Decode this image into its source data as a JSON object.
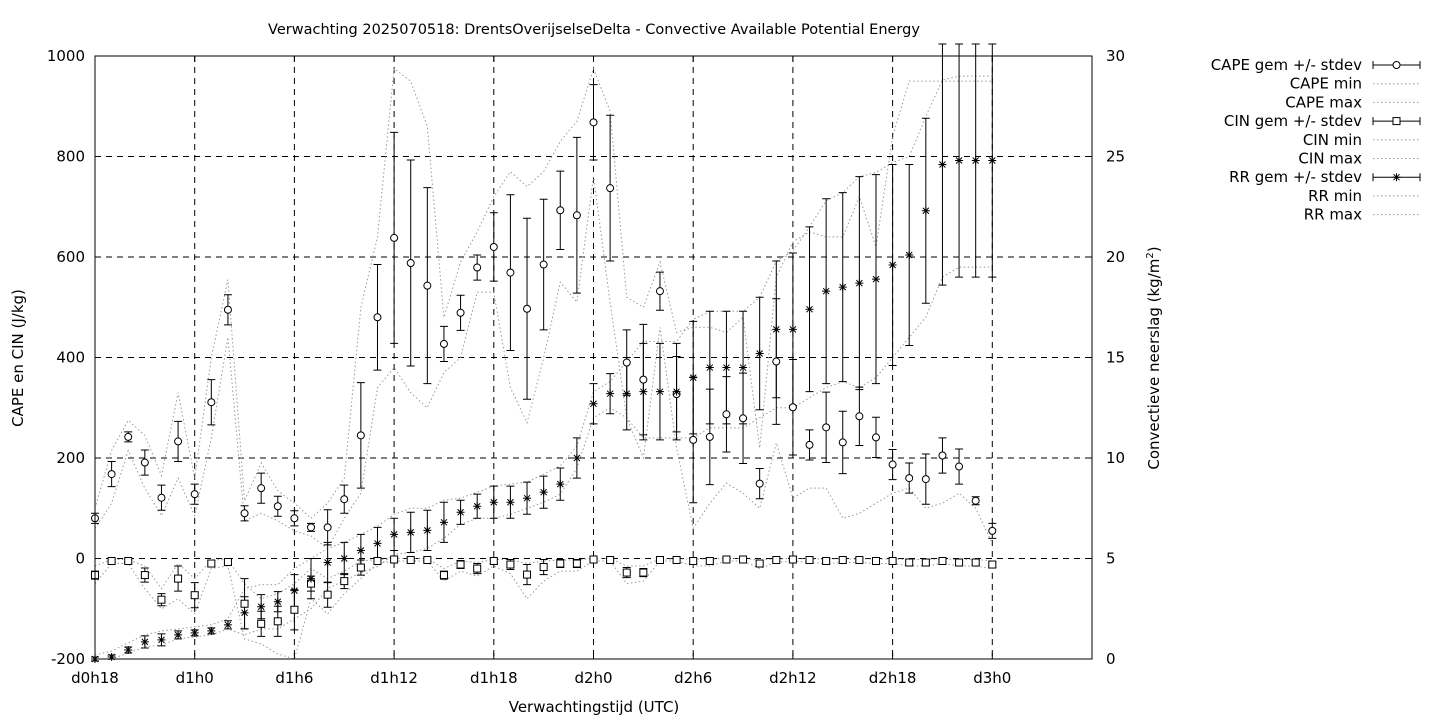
{
  "chart_data": {
    "type": "scatter",
    "title": "Verwachting 2025070518: DrentsOverijselseDelta - Convective Available Potential Energy",
    "xlabel": "Verwachtingstijd (UTC)",
    "ylabel": "CAPE en CIN (J/kg)",
    "y2label": "Convectieve neerslag (kg/m",
    "y2label_sup": "2",
    "y2label_end": ")",
    "xlim": [
      18,
      78
    ],
    "ylim": [
      -200,
      1000
    ],
    "y2lim": [
      0,
      30
    ],
    "grid": true,
    "legend_position": "right-outside",
    "x_ticks": [
      {
        "x": 18,
        "label": "d0h18"
      },
      {
        "x": 24,
        "label": "d1h0"
      },
      {
        "x": 30,
        "label": "d1h6"
      },
      {
        "x": 36,
        "label": "d1h12"
      },
      {
        "x": 42,
        "label": "d1h18"
      },
      {
        "x": 48,
        "label": "d2h0"
      },
      {
        "x": 54,
        "label": "d2h6"
      },
      {
        "x": 60,
        "label": "d2h12"
      },
      {
        "x": 66,
        "label": "d2h18"
      },
      {
        "x": 72,
        "label": "d3h0"
      }
    ],
    "y_ticks": [
      -200,
      0,
      200,
      400,
      600,
      800,
      1000
    ],
    "y2_ticks": [
      0,
      5,
      10,
      15,
      20,
      25,
      30
    ],
    "x": [
      18,
      19,
      20,
      21,
      22,
      23,
      24,
      25,
      26,
      27,
      28,
      29,
      30,
      31,
      32,
      33,
      34,
      35,
      36,
      37,
      38,
      39,
      40,
      41,
      42,
      43,
      44,
      45,
      46,
      47,
      48,
      49,
      50,
      51,
      52,
      53,
      54,
      55,
      56,
      57,
      58,
      59,
      60,
      61,
      62,
      63,
      64,
      65,
      66,
      67,
      68,
      69,
      70,
      71,
      72
    ],
    "series": [
      {
        "name": "CAPE gem +/- stdev",
        "marker": "circle",
        "mean": [
          80,
          168,
          242,
          191,
          121,
          233,
          128,
          311,
          495,
          90,
          140,
          104,
          80,
          62,
          62,
          118,
          245,
          480,
          638,
          588,
          543,
          427,
          489,
          579,
          620,
          569,
          497,
          585,
          693,
          683,
          868,
          737,
          390,
          356,
          532,
          327,
          236,
          242,
          287,
          279,
          149,
          392,
          301,
          226,
          261,
          231,
          283,
          241,
          187,
          160,
          158,
          205,
          183,
          115,
          55
        ],
        "stdev": [
          10,
          25,
          10,
          25,
          25,
          40,
          20,
          45,
          30,
          15,
          30,
          20,
          15,
          8,
          35,
          28,
          105,
          105,
          210,
          205,
          195,
          35,
          35,
          25,
          68,
          155,
          180,
          130,
          78,
          155,
          75,
          145,
          65,
          110,
          38,
          75,
          125,
          95,
          75,
          90,
          30,
          125,
          95,
          30,
          70,
          62,
          58,
          40,
          30,
          30,
          50,
          35,
          35,
          8,
          15
        ]
      },
      {
        "name": "CAPE min",
        "values": [
          60,
          110,
          215,
          140,
          85,
          160,
          85,
          240,
          440,
          75,
          90,
          75,
          55,
          45,
          20,
          80,
          130,
          340,
          380,
          330,
          300,
          370,
          400,
          530,
          530,
          340,
          270,
          400,
          550,
          510,
          760,
          510,
          280,
          200,
          460,
          220,
          60,
          110,
          150,
          130,
          100,
          230,
          120,
          140,
          140,
          80,
          90,
          110,
          130,
          140,
          100,
          110,
          130,
          100,
          30
        ]
      },
      {
        "name": "CAPE max",
        "values": [
          100,
          215,
          275,
          245,
          165,
          330,
          160,
          400,
          555,
          115,
          190,
          135,
          110,
          80,
          110,
          160,
          500,
          640,
          975,
          950,
          860,
          480,
          590,
          650,
          720,
          770,
          740,
          770,
          830,
          870,
          975,
          890,
          520,
          500,
          590,
          450,
          460,
          460,
          450,
          480,
          220,
          560,
          630,
          650,
          640,
          640,
          720,
          620,
          840,
          950,
          950,
          950,
          950,
          950,
          950
        ]
      },
      {
        "name": "CIN gem +/- stdev",
        "marker": "square",
        "mean": [
          -33,
          -5,
          -5,
          -33,
          -82,
          -40,
          -73,
          -10,
          -7,
          -90,
          -130,
          -125,
          -102,
          -50,
          -72,
          -45,
          -18,
          -5,
          -2,
          -3,
          -3,
          -33,
          -12,
          -20,
          -5,
          -12,
          -32,
          -17,
          -10,
          -10,
          -2,
          -3,
          -28,
          -28,
          -3,
          -3,
          -5,
          -5,
          -2,
          -2,
          -10,
          -3,
          -2,
          -3,
          -5,
          -3,
          -3,
          -5,
          -5,
          -8,
          -8,
          -5,
          -8,
          -8,
          -12
        ],
        "stdev": [
          8,
          3,
          3,
          14,
          12,
          25,
          25,
          5,
          5,
          50,
          25,
          30,
          40,
          15,
          25,
          15,
          15,
          5,
          3,
          3,
          3,
          8,
          8,
          10,
          5,
          10,
          20,
          15,
          8,
          8,
          3,
          3,
          10,
          8,
          3,
          3,
          5,
          5,
          3,
          3,
          5,
          3,
          3,
          3,
          5,
          3,
          3,
          5,
          5,
          5,
          5,
          5,
          5,
          5,
          5
        ]
      },
      {
        "name": "CIN min",
        "values": [
          -50,
          -10,
          -10,
          -60,
          -100,
          -80,
          -110,
          -20,
          -15,
          -160,
          -170,
          -190,
          -200,
          -80,
          -110,
          -70,
          -40,
          -10,
          -5,
          -5,
          -5,
          -45,
          -25,
          -35,
          -15,
          -30,
          -80,
          -45,
          -25,
          -25,
          -5,
          -5,
          -50,
          -45,
          -5,
          -5,
          -15,
          -15,
          -5,
          -5,
          -20,
          -8,
          -5,
          -8,
          -10,
          -8,
          -8,
          -10,
          -10,
          -15,
          -15,
          -10,
          -15,
          -15,
          -20
        ]
      },
      {
        "name": "CIN max",
        "values": [
          -15,
          -2,
          -2,
          -15,
          -60,
          -10,
          -40,
          -3,
          -2,
          -50,
          -80,
          -70,
          -50,
          -20,
          -40,
          -25,
          -5,
          -2,
          0,
          0,
          0,
          -20,
          -5,
          -8,
          -2,
          -2,
          -10,
          -5,
          -3,
          -3,
          0,
          0,
          -15,
          -15,
          -1,
          -1,
          -1,
          -1,
          0,
          0,
          -3,
          -1,
          0,
          -1,
          -1,
          -1,
          -1,
          -1,
          -1,
          -2,
          -2,
          -1,
          -2,
          -2,
          -5
        ]
      },
      {
        "name": "RR gem +/- stdev",
        "marker": "star",
        "mean": [
          0.0,
          0.1,
          0.45,
          0.85,
          0.95,
          1.2,
          1.3,
          1.4,
          1.7,
          2.3,
          2.6,
          2.85,
          3.4,
          4.0,
          4.8,
          5.0,
          5.4,
          5.75,
          6.2,
          6.3,
          6.4,
          6.8,
          7.3,
          7.6,
          7.8,
          7.8,
          8.0,
          8.3,
          8.7,
          10.0,
          12.7,
          13.2,
          13.2,
          13.3,
          13.3,
          13.3,
          14.0,
          14.5,
          14.5,
          14.5,
          15.2,
          16.4,
          16.4,
          17.4,
          18.3,
          18.5,
          18.7,
          18.9,
          19.6,
          20.1,
          22.3,
          24.6,
          24.8,
          24.8,
          24.8
        ],
        "stdev": [
          0.1,
          0.1,
          0.15,
          0.3,
          0.3,
          0.2,
          0.15,
          0.15,
          0.2,
          0.8,
          0.6,
          0.5,
          0.8,
          1.0,
          1.0,
          0.8,
          0.8,
          0.8,
          0.8,
          1.0,
          1.0,
          1.0,
          0.6,
          0.6,
          0.8,
          0.8,
          0.8,
          0.8,
          0.8,
          1.0,
          1.0,
          1.0,
          1.8,
          2.4,
          2.4,
          2.4,
          2.8,
          2.8,
          2.8,
          2.8,
          2.8,
          3.4,
          3.8,
          4.1,
          4.6,
          4.7,
          5.3,
          5.2,
          5.0,
          4.5,
          4.6,
          6.0,
          5.8,
          5.8,
          5.8
        ]
      },
      {
        "name": "RR min",
        "values": [
          0,
          0,
          0.3,
          0.6,
          0.7,
          1.0,
          1.1,
          1.2,
          1.5,
          1.2,
          1.5,
          1.5,
          2.0,
          2.5,
          3.5,
          3.9,
          4.3,
          4.6,
          5.2,
          5.3,
          5.5,
          6.0,
          6.7,
          7.0,
          7.0,
          7.2,
          7.5,
          7.8,
          8.2,
          9.5,
          12.0,
          12.5,
          12.0,
          11.0,
          11.0,
          11.0,
          11.0,
          11.5,
          11.5,
          11.5,
          12.0,
          12.5,
          12.5,
          13.0,
          13.5,
          13.8,
          13.5,
          14.0,
          15.0,
          16.0,
          17.0,
          19.0,
          19.5,
          19.5,
          19.5
        ]
      },
      {
        "name": "RR max",
        "values": [
          0.2,
          0.4,
          0.8,
          1.2,
          1.4,
          1.5,
          1.6,
          1.7,
          2.0,
          3.5,
          3.7,
          3.7,
          4.5,
          5.0,
          5.5,
          5.8,
          6.2,
          6.6,
          7.2,
          7.5,
          7.5,
          7.9,
          8.0,
          8.3,
          8.6,
          8.7,
          8.8,
          9.2,
          9.6,
          10.6,
          13.3,
          13.8,
          14.8,
          15.8,
          15.8,
          15.8,
          16.9,
          17.3,
          17.3,
          17.3,
          18.0,
          19.8,
          20.3,
          21.5,
          22.8,
          23.2,
          24.0,
          24.2,
          24.7,
          25.0,
          27.0,
          28.8,
          29.0,
          29.0,
          29.0
        ]
      }
    ]
  }
}
